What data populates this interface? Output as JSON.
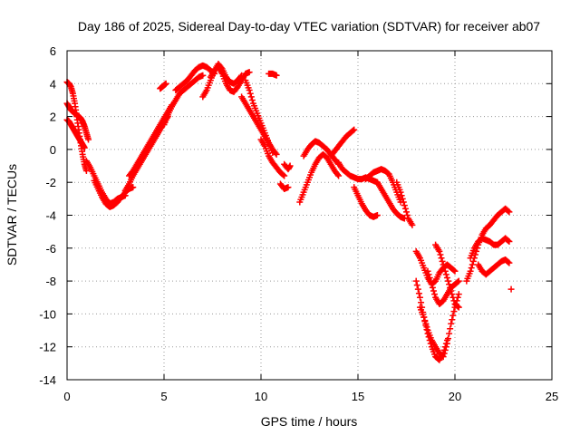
{
  "chart_data": {
    "type": "scatter",
    "title": "Day 186 of 2025, Sidereal Day-to-day VTEC variation (SDTVAR) for receiver ab07",
    "xlabel": "GPS time / hours",
    "ylabel": "SDTVAR / TECUs",
    "xlim": [
      0,
      25
    ],
    "ylim": [
      -14,
      6
    ],
    "x_ticks": [
      0,
      5,
      10,
      15,
      20,
      25
    ],
    "y_ticks": [
      -14,
      -12,
      -10,
      -8,
      -6,
      -4,
      -2,
      0,
      2,
      4,
      6
    ],
    "grid": true,
    "marker": "plus",
    "color": "#ff0000",
    "series": [
      {
        "x": [
          0.0,
          0.1,
          0.2,
          0.3,
          0.4,
          0.5,
          0.6,
          0.7,
          0.8,
          0.9,
          1.0
        ],
        "y": [
          4.1,
          4.0,
          3.8,
          3.4,
          2.8,
          2.0,
          1.2,
          0.4,
          -0.3,
          -0.9,
          -1.3
        ]
      },
      {
        "x": [
          0.0,
          0.1,
          0.2,
          0.3,
          0.4,
          0.5,
          0.6,
          0.7,
          0.8,
          0.9,
          1.0,
          1.1
        ],
        "y": [
          2.8,
          2.6,
          2.4,
          2.3,
          2.2,
          2.1,
          2.0,
          1.9,
          1.7,
          1.4,
          1.0,
          0.6
        ]
      },
      {
        "x": [
          0.0,
          0.1,
          0.2,
          0.3,
          0.4,
          0.5,
          0.6,
          0.7,
          0.8,
          0.9
        ],
        "y": [
          1.8,
          1.7,
          1.5,
          1.3,
          1.1,
          0.9,
          0.7,
          0.5,
          0.3,
          0.1
        ]
      },
      {
        "x": [
          1.0,
          1.2,
          1.4,
          1.6,
          1.8,
          2.0,
          2.2,
          2.4,
          2.6,
          2.8,
          3.0
        ],
        "y": [
          -0.7,
          -1.1,
          -1.6,
          -2.1,
          -2.6,
          -3.0,
          -3.3,
          -3.2,
          -3.0,
          -2.9,
          -2.8
        ]
      },
      {
        "x": [
          1.4,
          1.6,
          1.8,
          2.0,
          2.2,
          2.4,
          2.6,
          2.8,
          3.0,
          3.2,
          3.4
        ],
        "y": [
          -1.9,
          -2.4,
          -2.9,
          -3.3,
          -3.5,
          -3.4,
          -3.2,
          -2.9,
          -2.6,
          -2.4,
          -2.3
        ]
      },
      {
        "x": [
          3.0,
          3.2,
          3.4,
          3.6,
          3.8,
          4.0,
          4.2,
          4.4,
          4.6,
          4.8,
          5.0,
          5.2
        ],
        "y": [
          -2.5,
          -2.1,
          -1.6,
          -1.2,
          -0.8,
          -0.4,
          0.0,
          0.4,
          0.8,
          1.2,
          1.6,
          2.0
        ]
      },
      {
        "x": [
          3.2,
          3.4,
          3.6,
          3.8,
          4.0,
          4.2,
          4.4,
          4.6,
          4.8,
          5.0,
          5.2,
          5.4
        ],
        "y": [
          -1.6,
          -1.3,
          -0.9,
          -0.5,
          -0.1,
          0.3,
          0.7,
          1.1,
          1.5,
          1.9,
          2.3,
          2.7
        ]
      },
      {
        "x": [
          5.0,
          5.2,
          5.4,
          5.6,
          5.8,
          6.0,
          6.2,
          6.4,
          6.6,
          6.8,
          7.0
        ],
        "y": [
          1.5,
          2.1,
          2.6,
          3.0,
          3.4,
          3.6,
          3.8,
          4.0,
          4.2,
          4.4,
          4.5
        ]
      },
      {
        "x": [
          5.6,
          5.8,
          6.0,
          6.2,
          6.4,
          6.6,
          6.8,
          7.0,
          7.2,
          7.4,
          7.6
        ],
        "y": [
          3.6,
          3.8,
          4.0,
          4.2,
          4.5,
          4.8,
          5.0,
          5.1,
          5.0,
          4.8,
          4.6
        ]
      },
      {
        "x": [
          4.8,
          4.9,
          5.0,
          5.1
        ],
        "y": [
          3.7,
          3.8,
          3.9,
          4.0
        ]
      },
      {
        "x": [
          7.0,
          7.2,
          7.4,
          7.6,
          7.8,
          8.0,
          8.2,
          8.4,
          8.6,
          8.8,
          9.0
        ],
        "y": [
          3.2,
          3.6,
          4.2,
          4.8,
          5.2,
          4.9,
          4.4,
          4.1,
          4.0,
          4.2,
          4.5
        ]
      },
      {
        "x": [
          7.4,
          7.6,
          7.8,
          8.0,
          8.2,
          8.4,
          8.6,
          8.8,
          9.0,
          9.2,
          9.4
        ],
        "y": [
          4.4,
          4.8,
          5.0,
          4.6,
          4.0,
          3.6,
          3.5,
          3.8,
          4.2,
          4.6,
          4.7
        ]
      },
      {
        "x": [
          9.0,
          9.2,
          9.4,
          9.6,
          9.8,
          10.0,
          10.2,
          10.4,
          10.6,
          10.8
        ],
        "y": [
          3.2,
          2.8,
          2.4,
          2.0,
          1.6,
          1.2,
          0.8,
          0.4,
          0.0,
          -0.3
        ]
      },
      {
        "x": [
          9.2,
          9.4,
          9.6,
          9.8,
          10.0,
          10.2,
          10.4,
          10.6
        ],
        "y": [
          4.2,
          3.6,
          2.8,
          2.2,
          1.6,
          1.0,
          0.4,
          -0.2
        ]
      },
      {
        "x": [
          10.0,
          10.2,
          10.4,
          10.6,
          10.8,
          11.0,
          11.2
        ],
        "y": [
          0.6,
          0.2,
          -0.4,
          -0.8,
          -1.1,
          -1.4,
          -1.6
        ]
      },
      {
        "x": [
          11.2,
          11.4,
          11.5
        ],
        "y": [
          -0.9,
          -1.2,
          -1.0
        ]
      },
      {
        "x": [
          11.0,
          11.2,
          11.4
        ],
        "y": [
          -2.1,
          -2.4,
          -2.3
        ]
      },
      {
        "x": [
          10.4,
          10.6,
          10.8
        ],
        "y": [
          4.6,
          4.6,
          4.5
        ]
      },
      {
        "x": [
          12.0,
          12.2,
          12.4,
          12.6,
          12.8,
          13.0,
          13.2,
          13.4,
          13.6,
          13.8,
          14.0
        ],
        "y": [
          -3.2,
          -2.6,
          -2.0,
          -1.4,
          -0.9,
          -0.5,
          -0.3,
          -0.5,
          -0.9,
          -1.3,
          -1.6
        ]
      },
      {
        "x": [
          12.2,
          12.4,
          12.6,
          12.8,
          13.0,
          13.2,
          13.4,
          13.6,
          13.8,
          14.0
        ],
        "y": [
          -0.4,
          0.0,
          0.3,
          0.5,
          0.4,
          0.2,
          0.0,
          -0.3,
          -0.6,
          -0.9
        ]
      },
      {
        "x": [
          13.6,
          13.8,
          14.0,
          14.2,
          14.4,
          14.6,
          14.8
        ],
        "y": [
          -0.4,
          -0.1,
          0.2,
          0.5,
          0.8,
          1.0,
          1.2
        ]
      },
      {
        "x": [
          14.0,
          14.2,
          14.4,
          14.6,
          14.8,
          15.0,
          15.2,
          15.4,
          15.6,
          15.8,
          16.0
        ],
        "y": [
          -0.8,
          -1.2,
          -1.4,
          -1.6,
          -1.7,
          -1.8,
          -1.8,
          -1.7,
          -1.8,
          -1.9,
          -2.0
        ]
      },
      {
        "x": [
          14.8,
          15.0,
          15.2,
          15.4,
          15.6,
          15.8,
          16.0
        ],
        "y": [
          -2.3,
          -2.8,
          -3.3,
          -3.7,
          -4.0,
          -4.1,
          -4.0
        ]
      },
      {
        "x": [
          15.4,
          15.6,
          15.8,
          16.0,
          16.2,
          16.4,
          16.6,
          16.8,
          17.0,
          17.2
        ],
        "y": [
          -1.8,
          -1.6,
          -1.4,
          -1.3,
          -1.2,
          -1.3,
          -1.5,
          -2.0,
          -2.6,
          -3.2
        ]
      },
      {
        "x": [
          16.0,
          16.2,
          16.4,
          16.6,
          16.8,
          17.0,
          17.2,
          17.4
        ],
        "y": [
          -2.0,
          -2.4,
          -2.8,
          -3.2,
          -3.6,
          -3.9,
          -4.1,
          -4.2
        ]
      },
      {
        "x": [
          17.0,
          17.2,
          17.4,
          17.6,
          17.8
        ],
        "y": [
          -2.0,
          -2.6,
          -3.4,
          -4.2,
          -4.6
        ]
      },
      {
        "x": [
          18.0,
          18.2,
          18.4,
          18.6,
          18.8,
          19.0,
          19.2,
          19.4,
          19.6,
          19.8,
          20.0
        ],
        "y": [
          -6.2,
          -6.6,
          -7.2,
          -7.8,
          -8.2,
          -8.0,
          -7.5,
          -7.2,
          -7.0,
          -7.2,
          -7.4
        ]
      },
      {
        "x": [
          18.2,
          18.4,
          18.6,
          18.8,
          19.0,
          19.2,
          19.4,
          19.6,
          19.8,
          20.0,
          20.2
        ],
        "y": [
          -9.6,
          -10.2,
          -11.0,
          -11.6,
          -12.0,
          -12.4,
          -12.6,
          -11.8,
          -10.6,
          -9.6,
          -8.8
        ]
      },
      {
        "x": [
          18.6,
          18.8,
          19.0,
          19.2,
          19.4,
          19.6,
          19.8,
          20.0,
          20.2
        ],
        "y": [
          -7.4,
          -8.2,
          -9.0,
          -9.4,
          -9.2,
          -8.8,
          -8.4,
          -8.2,
          -8.0
        ]
      },
      {
        "x": [
          19.0,
          19.2,
          19.4,
          19.6,
          19.8,
          20.0,
          20.2
        ],
        "y": [
          -5.8,
          -6.2,
          -7.0,
          -7.8,
          -8.6,
          -9.4,
          -9.6
        ]
      },
      {
        "x": [
          18.0,
          18.2,
          18.4,
          18.6,
          18.8,
          19.0,
          19.2,
          19.4,
          19.6
        ],
        "y": [
          -8.0,
          -9.0,
          -10.2,
          -11.2,
          -12.0,
          -12.6,
          -12.8,
          -12.4,
          -11.6
        ]
      },
      {
        "x": [
          20.6,
          20.8,
          21.0,
          21.2,
          21.4,
          21.6,
          21.8,
          22.0,
          22.2,
          22.4,
          22.6,
          22.8
        ],
        "y": [
          -8.0,
          -7.4,
          -6.6,
          -5.8,
          -5.2,
          -4.8,
          -4.6,
          -4.3,
          -4.0,
          -3.8,
          -3.6,
          -3.8
        ]
      },
      {
        "x": [
          20.8,
          21.0,
          21.2,
          21.4,
          21.6,
          21.8,
          22.0,
          22.2,
          22.4,
          22.6,
          22.8
        ],
        "y": [
          -6.6,
          -6.0,
          -5.6,
          -5.4,
          -5.5,
          -5.6,
          -5.8,
          -5.8,
          -5.6,
          -5.4,
          -5.6
        ]
      },
      {
        "x": [
          21.2,
          21.4,
          21.6,
          21.8,
          22.0,
          22.2,
          22.4,
          22.6,
          22.8
        ],
        "y": [
          -7.0,
          -7.4,
          -7.6,
          -7.4,
          -7.2,
          -7.0,
          -6.8,
          -6.7,
          -6.9
        ]
      },
      {
        "x": [
          22.9
        ],
        "y": [
          -8.5
        ]
      }
    ]
  }
}
